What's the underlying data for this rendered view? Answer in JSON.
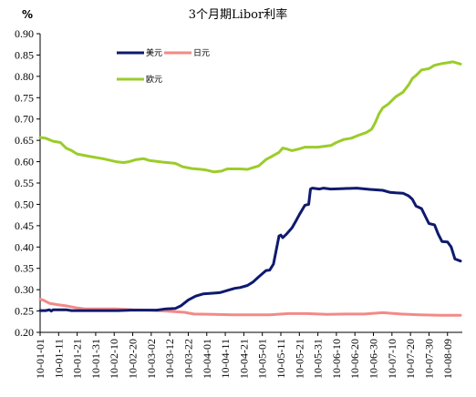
{
  "chart_data": {
    "type": "line",
    "title": "3个月期Libor利率",
    "ylabel": "%",
    "xlabel": "",
    "ylim": [
      0.2,
      0.9
    ],
    "yticks": [
      "0.20",
      "0.25",
      "0.30",
      "0.35",
      "0.40",
      "0.45",
      "0.50",
      "0.55",
      "0.60",
      "0.65",
      "0.70",
      "0.75",
      "0.80",
      "0.85",
      "0.90"
    ],
    "x_start": "2010-01-01",
    "x_end": "2010-08-17",
    "xticks": [
      "10-01-01",
      "10-01-11",
      "10-01-21",
      "10-01-31",
      "10-02-10",
      "10-02-20",
      "10-03-02",
      "10-03-12",
      "10-03-22",
      "10-04-01",
      "10-04-11",
      "10-04-21",
      "10-05-01",
      "10-05-11",
      "10-05-21",
      "10-05-31",
      "10-06-10",
      "10-06-20",
      "10-06-30",
      "10-07-10",
      "10-07-20",
      "10-07-30",
      "10-08-09"
    ],
    "grid": false,
    "legend": "top-center",
    "series": [
      {
        "name": "美元",
        "color": "#0d1a6e",
        "points": [
          [
            "2010-01-01",
            0.251
          ],
          [
            "2010-01-04",
            0.251
          ],
          [
            "2010-01-06",
            0.253
          ],
          [
            "2010-01-07",
            0.25
          ],
          [
            "2010-01-08",
            0.253
          ],
          [
            "2010-01-15",
            0.253
          ],
          [
            "2010-01-18",
            0.251
          ],
          [
            "2010-02-05",
            0.251
          ],
          [
            "2010-02-12",
            0.251
          ],
          [
            "2010-02-19",
            0.252
          ],
          [
            "2010-02-26",
            0.252
          ],
          [
            "2010-03-05",
            0.252
          ],
          [
            "2010-03-10",
            0.255
          ],
          [
            "2010-03-15",
            0.256
          ],
          [
            "2010-03-18",
            0.262
          ],
          [
            "2010-03-22",
            0.276
          ],
          [
            "2010-03-26",
            0.285
          ],
          [
            "2010-03-30",
            0.29
          ],
          [
            "2010-04-05",
            0.292
          ],
          [
            "2010-04-08",
            0.293
          ],
          [
            "2010-04-12",
            0.298
          ],
          [
            "2010-04-16",
            0.303
          ],
          [
            "2010-04-19",
            0.305
          ],
          [
            "2010-04-23",
            0.31
          ],
          [
            "2010-04-26",
            0.318
          ],
          [
            "2010-04-29",
            0.33
          ],
          [
            "2010-05-03",
            0.345
          ],
          [
            "2010-05-05",
            0.346
          ],
          [
            "2010-05-07",
            0.36
          ],
          [
            "2010-05-10",
            0.426
          ],
          [
            "2010-05-11",
            0.428
          ],
          [
            "2010-05-12",
            0.422
          ],
          [
            "2010-05-14",
            0.43
          ],
          [
            "2010-05-17",
            0.445
          ],
          [
            "2010-05-19",
            0.46
          ],
          [
            "2010-05-21",
            0.476
          ],
          [
            "2010-05-24",
            0.498
          ],
          [
            "2010-05-26",
            0.5
          ],
          [
            "2010-05-27",
            0.536
          ],
          [
            "2010-05-28",
            0.538
          ],
          [
            "2010-06-01",
            0.536
          ],
          [
            "2010-06-03",
            0.538
          ],
          [
            "2010-06-07",
            0.536
          ],
          [
            "2010-06-14",
            0.537
          ],
          [
            "2010-06-21",
            0.538
          ],
          [
            "2010-06-28",
            0.535
          ],
          [
            "2010-07-05",
            0.533
          ],
          [
            "2010-07-09",
            0.528
          ],
          [
            "2010-07-12",
            0.527
          ],
          [
            "2010-07-16",
            0.526
          ],
          [
            "2010-07-19",
            0.52
          ],
          [
            "2010-07-21",
            0.512
          ],
          [
            "2010-07-23",
            0.496
          ],
          [
            "2010-07-26",
            0.49
          ],
          [
            "2010-07-28",
            0.472
          ],
          [
            "2010-07-30",
            0.455
          ],
          [
            "2010-08-02",
            0.452
          ],
          [
            "2010-08-04",
            0.43
          ],
          [
            "2010-08-06",
            0.413
          ],
          [
            "2010-08-09",
            0.412
          ],
          [
            "2010-08-11",
            0.4
          ],
          [
            "2010-08-13",
            0.372
          ],
          [
            "2010-08-16",
            0.367
          ]
        ]
      },
      {
        "name": "日元",
        "color": "#f28a87",
        "points": [
          [
            "2010-01-01",
            0.278
          ],
          [
            "2010-01-03",
            0.275
          ],
          [
            "2010-01-06",
            0.268
          ],
          [
            "2010-01-10",
            0.265
          ],
          [
            "2010-01-15",
            0.262
          ],
          [
            "2010-01-20",
            0.258
          ],
          [
            "2010-01-25",
            0.255
          ],
          [
            "2010-02-01",
            0.255
          ],
          [
            "2010-02-10",
            0.255
          ],
          [
            "2010-02-20",
            0.253
          ],
          [
            "2010-03-01",
            0.252
          ],
          [
            "2010-03-10",
            0.25
          ],
          [
            "2010-03-20",
            0.247
          ],
          [
            "2010-03-25",
            0.243
          ],
          [
            "2010-04-05",
            0.242
          ],
          [
            "2010-04-15",
            0.241
          ],
          [
            "2010-04-25",
            0.241
          ],
          [
            "2010-05-05",
            0.241
          ],
          [
            "2010-05-15",
            0.244
          ],
          [
            "2010-05-25",
            0.244
          ],
          [
            "2010-06-05",
            0.242
          ],
          [
            "2010-06-15",
            0.243
          ],
          [
            "2010-06-25",
            0.243
          ],
          [
            "2010-07-05",
            0.246
          ],
          [
            "2010-07-15",
            0.243
          ],
          [
            "2010-07-25",
            0.241
          ],
          [
            "2010-08-05",
            0.24
          ],
          [
            "2010-08-16",
            0.24
          ]
        ]
      },
      {
        "name": "欧元",
        "color": "#9bcc2a",
        "points": [
          [
            "2010-01-01",
            0.657
          ],
          [
            "2010-01-04",
            0.655
          ],
          [
            "2010-01-08",
            0.648
          ],
          [
            "2010-01-12",
            0.645
          ],
          [
            "2010-01-15",
            0.632
          ],
          [
            "2010-01-18",
            0.626
          ],
          [
            "2010-01-21",
            0.618
          ],
          [
            "2010-01-28",
            0.612
          ],
          [
            "2010-02-04",
            0.607
          ],
          [
            "2010-02-11",
            0.6
          ],
          [
            "2010-02-15",
            0.598
          ],
          [
            "2010-02-18",
            0.6
          ],
          [
            "2010-02-22",
            0.605
          ],
          [
            "2010-02-26",
            0.607
          ],
          [
            "2010-03-01",
            0.603
          ],
          [
            "2010-03-08",
            0.599
          ],
          [
            "2010-03-15",
            0.596
          ],
          [
            "2010-03-19",
            0.588
          ],
          [
            "2010-03-24",
            0.584
          ],
          [
            "2010-03-29",
            0.582
          ],
          [
            "2010-04-01",
            0.58
          ],
          [
            "2010-04-05",
            0.576
          ],
          [
            "2010-04-09",
            0.578
          ],
          [
            "2010-04-12",
            0.583
          ],
          [
            "2010-04-19",
            0.583
          ],
          [
            "2010-04-23",
            0.582
          ],
          [
            "2010-04-26",
            0.586
          ],
          [
            "2010-04-29",
            0.59
          ],
          [
            "2010-05-03",
            0.605
          ],
          [
            "2010-05-06",
            0.612
          ],
          [
            "2010-05-10",
            0.622
          ],
          [
            "2010-05-12",
            0.632
          ],
          [
            "2010-05-14",
            0.63
          ],
          [
            "2010-05-17",
            0.626
          ],
          [
            "2010-05-21",
            0.63
          ],
          [
            "2010-05-24",
            0.634
          ],
          [
            "2010-05-31",
            0.634
          ],
          [
            "2010-06-07",
            0.638
          ],
          [
            "2010-06-10",
            0.645
          ],
          [
            "2010-06-14",
            0.652
          ],
          [
            "2010-06-18",
            0.655
          ],
          [
            "2010-06-22",
            0.662
          ],
          [
            "2010-06-26",
            0.668
          ],
          [
            "2010-06-29",
            0.676
          ],
          [
            "2010-07-01",
            0.692
          ],
          [
            "2010-07-03",
            0.712
          ],
          [
            "2010-07-05",
            0.726
          ],
          [
            "2010-07-08",
            0.735
          ],
          [
            "2010-07-12",
            0.752
          ],
          [
            "2010-07-16",
            0.763
          ],
          [
            "2010-07-19",
            0.78
          ],
          [
            "2010-07-21",
            0.795
          ],
          [
            "2010-07-23",
            0.802
          ],
          [
            "2010-07-26",
            0.815
          ],
          [
            "2010-07-30",
            0.818
          ],
          [
            "2010-08-02",
            0.826
          ],
          [
            "2010-08-06",
            0.83
          ],
          [
            "2010-08-09",
            0.832
          ],
          [
            "2010-08-12",
            0.834
          ],
          [
            "2010-08-16",
            0.829
          ]
        ]
      }
    ]
  }
}
